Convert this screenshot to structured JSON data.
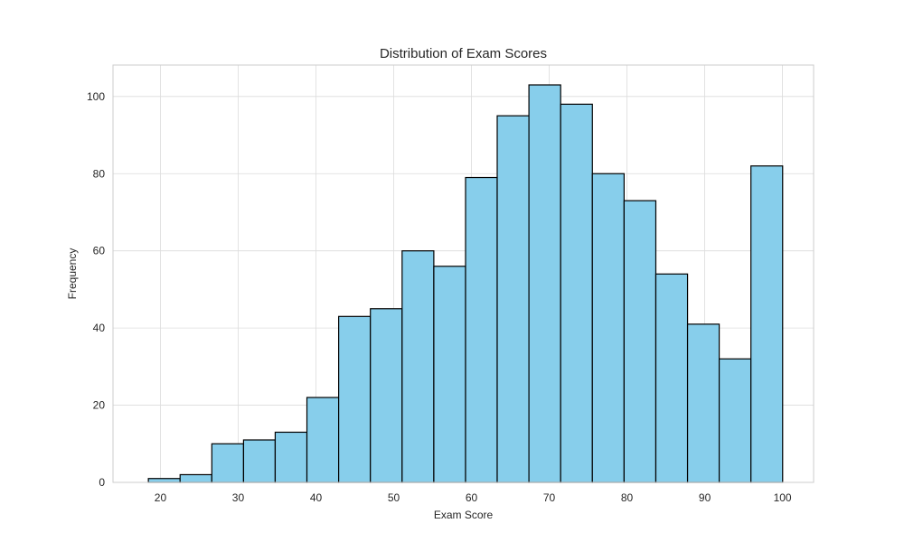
{
  "chart_data": {
    "type": "bar",
    "title": "Distribution of Exam Scores",
    "xlabel": "Exam Score",
    "ylabel": "Frequency",
    "xlim": [
      13.9,
      104.0
    ],
    "ylim": [
      0,
      108.15
    ],
    "xticks": [
      20,
      30,
      40,
      50,
      60,
      70,
      80,
      90,
      100
    ],
    "yticks": [
      0,
      20,
      40,
      60,
      80,
      100
    ],
    "grid": true,
    "bar_color": "#87CEEB",
    "edge_color": "#000000",
    "bins": [
      {
        "start": 18.45,
        "end": 22.53,
        "value": 1
      },
      {
        "start": 22.53,
        "end": 26.61,
        "value": 2
      },
      {
        "start": 26.61,
        "end": 30.69,
        "value": 10
      },
      {
        "start": 30.69,
        "end": 34.76,
        "value": 11
      },
      {
        "start": 34.76,
        "end": 38.84,
        "value": 13
      },
      {
        "start": 38.84,
        "end": 42.92,
        "value": 22
      },
      {
        "start": 42.92,
        "end": 47.0,
        "value": 43
      },
      {
        "start": 47.0,
        "end": 51.08,
        "value": 45
      },
      {
        "start": 51.08,
        "end": 55.16,
        "value": 60
      },
      {
        "start": 55.16,
        "end": 59.24,
        "value": 56
      },
      {
        "start": 59.24,
        "end": 63.31,
        "value": 79
      },
      {
        "start": 63.31,
        "end": 67.39,
        "value": 95
      },
      {
        "start": 67.39,
        "end": 71.47,
        "value": 103
      },
      {
        "start": 71.47,
        "end": 75.55,
        "value": 98
      },
      {
        "start": 75.55,
        "end": 79.63,
        "value": 80
      },
      {
        "start": 79.63,
        "end": 83.71,
        "value": 73
      },
      {
        "start": 83.71,
        "end": 87.79,
        "value": 54
      },
      {
        "start": 87.79,
        "end": 91.86,
        "value": 41
      },
      {
        "start": 91.86,
        "end": 95.94,
        "value": 32
      },
      {
        "start": 95.94,
        "end": 100.02,
        "value": 82
      }
    ]
  }
}
